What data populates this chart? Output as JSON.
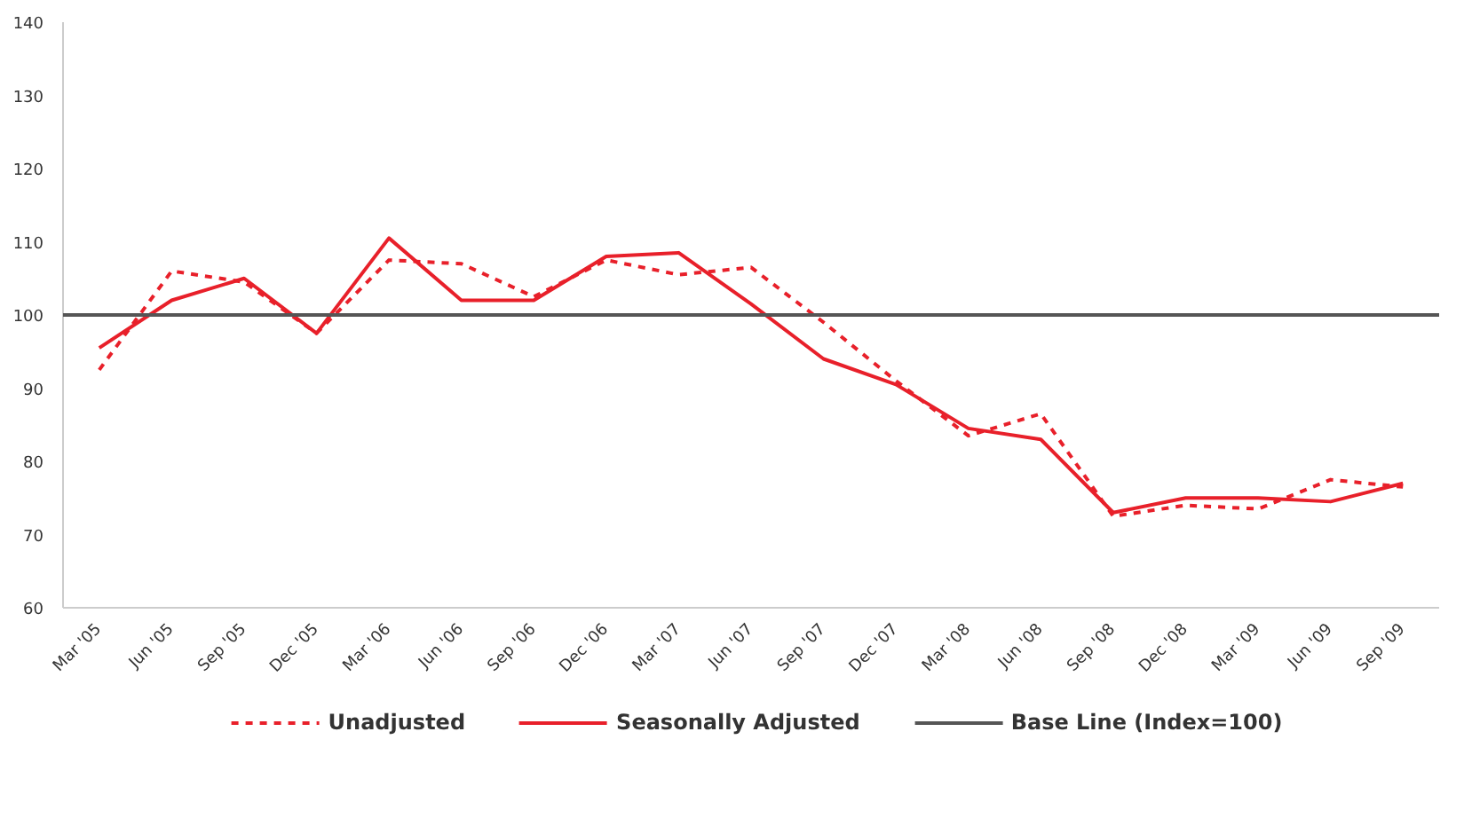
{
  "chart_data": {
    "type": "line",
    "categories": [
      "Mar '05",
      "Jun '05",
      "Sep '05",
      "Dec '05",
      "Mar '06",
      "Jun '06",
      "Sep '06",
      "Dec '06",
      "Mar '07",
      "Jun '07",
      "Sep '07",
      "Dec '07",
      "Mar '08",
      "Jun '08",
      "Sep '08",
      "Dec '08",
      "Mar '09",
      "Jun '09",
      "Sep '09"
    ],
    "series": [
      {
        "name": "Unadjusted",
        "color": "#e8202a",
        "line_style": "dashed",
        "values": [
          92.5,
          106,
          104.5,
          97.5,
          107.5,
          107,
          102.5,
          107.5,
          105.5,
          106.5,
          99,
          91,
          83.5,
          86.5,
          72.5,
          74,
          73.5,
          77.5,
          76.5
        ]
      },
      {
        "name": "Seasonally Adjusted",
        "color": "#e8202a",
        "line_style": "solid",
        "values": [
          95.5,
          102,
          105,
          97.5,
          110.5,
          102,
          102,
          108,
          108.5,
          101.5,
          94,
          90.5,
          84.5,
          83,
          73,
          75,
          75,
          74.5,
          77
        ]
      }
    ],
    "ref_lines": [
      {
        "axis": "y",
        "value": 100,
        "label": "Base Line (Index=100)",
        "color": "#555555"
      }
    ],
    "ylim": [
      60,
      140
    ],
    "yticks": [
      60,
      70,
      80,
      90,
      100,
      110,
      120,
      130,
      140
    ],
    "grid": false,
    "legend": "bottom",
    "marker": "none"
  }
}
